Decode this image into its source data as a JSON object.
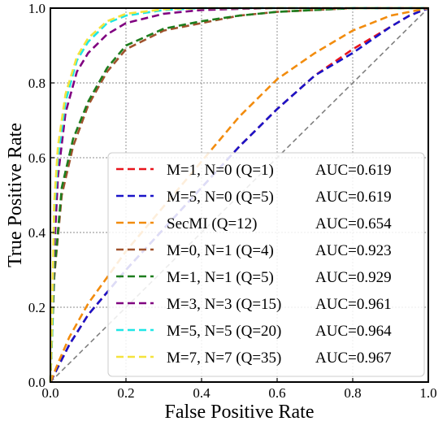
{
  "chart_data": {
    "type": "line",
    "xlabel": "False Positive Rate",
    "ylabel": "True Positive Rate",
    "xlim": [
      0.0,
      1.0
    ],
    "ylim": [
      0.0,
      1.0
    ],
    "xticks": [
      "0.0",
      "0.2",
      "0.4",
      "0.6",
      "0.8",
      "1.0"
    ],
    "yticks": [
      "0.0",
      "0.2",
      "0.4",
      "0.6",
      "0.8",
      "1.0"
    ],
    "grid": true,
    "legend_position": "lower-right",
    "reference_line": {
      "x": [
        0,
        1
      ],
      "y": [
        0,
        1
      ],
      "color": "#808080",
      "style": "dashed"
    },
    "series": [
      {
        "name": "M=1, N=0 (Q=1)",
        "auc_label": "AUC=0.619",
        "color": "#e8141c",
        "x": [
          0,
          0.02,
          0.05,
          0.1,
          0.15,
          0.2,
          0.3,
          0.4,
          0.5,
          0.6,
          0.7,
          0.8,
          0.9,
          0.95,
          1.0
        ],
        "y": [
          0,
          0.04,
          0.1,
          0.18,
          0.24,
          0.3,
          0.41,
          0.52,
          0.63,
          0.73,
          0.82,
          0.89,
          0.95,
          0.98,
          1.0
        ]
      },
      {
        "name": "M=5, N=0 (Q=5)",
        "auc_label": "AUC=0.619",
        "color": "#1a14c8",
        "x": [
          0,
          0.02,
          0.05,
          0.1,
          0.15,
          0.2,
          0.3,
          0.4,
          0.5,
          0.6,
          0.7,
          0.8,
          0.9,
          0.95,
          1.0
        ],
        "y": [
          0,
          0.04,
          0.1,
          0.18,
          0.24,
          0.3,
          0.41,
          0.52,
          0.63,
          0.73,
          0.82,
          0.88,
          0.95,
          0.98,
          1.0
        ]
      },
      {
        "name": "SecMI        (Q=12)",
        "auc_label": "AUC=0.654",
        "color": "#f28c0e",
        "x": [
          0,
          0.02,
          0.05,
          0.1,
          0.15,
          0.2,
          0.3,
          0.4,
          0.5,
          0.6,
          0.7,
          0.8,
          0.9,
          0.95,
          1.0
        ],
        "y": [
          0,
          0.05,
          0.12,
          0.21,
          0.28,
          0.35,
          0.47,
          0.59,
          0.71,
          0.81,
          0.88,
          0.94,
          0.98,
          0.99,
          1.0
        ]
      },
      {
        "name": "M=0, N=1 (Q=4)",
        "auc_label": "AUC=0.923",
        "color": "#a0522d",
        "x": [
          0,
          0.01,
          0.03,
          0.06,
          0.1,
          0.15,
          0.2,
          0.3,
          0.4,
          0.5,
          0.6,
          0.7,
          0.8,
          0.9,
          1.0
        ],
        "y": [
          0,
          0.28,
          0.5,
          0.63,
          0.74,
          0.83,
          0.89,
          0.94,
          0.96,
          0.98,
          0.99,
          0.995,
          1.0,
          1.0,
          1.0
        ]
      },
      {
        "name": "M=1, N=1 (Q=5)",
        "auc_label": "AUC=0.929",
        "color": "#1e7d1e",
        "x": [
          0,
          0.01,
          0.03,
          0.06,
          0.1,
          0.15,
          0.2,
          0.3,
          0.4,
          0.5,
          0.6,
          0.7,
          0.8,
          0.9,
          1.0
        ],
        "y": [
          0,
          0.29,
          0.52,
          0.65,
          0.75,
          0.84,
          0.9,
          0.945,
          0.965,
          0.98,
          0.99,
          0.995,
          1.0,
          1.0,
          1.0
        ]
      },
      {
        "name": "M=3, N=3 (Q=15)",
        "auc_label": "AUC=0.961",
        "color": "#800080",
        "x": [
          0,
          0.01,
          0.02,
          0.04,
          0.07,
          0.1,
          0.15,
          0.2,
          0.3,
          0.4,
          0.5,
          0.6,
          0.8,
          1.0
        ],
        "y": [
          0,
          0.35,
          0.55,
          0.72,
          0.83,
          0.88,
          0.93,
          0.96,
          0.985,
          0.995,
          0.998,
          1.0,
          1.0,
          1.0
        ]
      },
      {
        "name": "M=5, N=5 (Q=20)",
        "auc_label": "AUC=0.964",
        "color": "#1ee6e6",
        "x": [
          0,
          0.005,
          0.01,
          0.02,
          0.04,
          0.07,
          0.1,
          0.15,
          0.2,
          0.3,
          0.4,
          0.6,
          0.8,
          1.0
        ],
        "y": [
          0,
          0.15,
          0.45,
          0.6,
          0.75,
          0.86,
          0.91,
          0.96,
          0.98,
          0.995,
          1.0,
          1.0,
          1.0,
          1.0
        ]
      },
      {
        "name": "M=7, N=7 (Q=35)",
        "auc_label": "AUC=0.967",
        "color": "#f5e33c",
        "x": [
          0,
          0.005,
          0.01,
          0.02,
          0.04,
          0.07,
          0.1,
          0.15,
          0.2,
          0.3,
          0.4,
          0.6,
          0.8,
          1.0
        ],
        "y": [
          0,
          0.2,
          0.48,
          0.63,
          0.77,
          0.87,
          0.92,
          0.965,
          0.985,
          0.997,
          1.0,
          1.0,
          1.0,
          1.0
        ]
      }
    ]
  }
}
